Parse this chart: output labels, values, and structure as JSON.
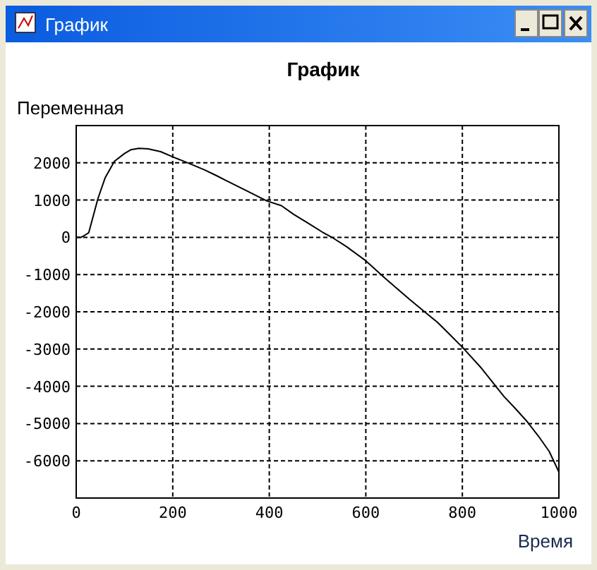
{
  "chart_data": {
    "type": "line",
    "title": "График",
    "xlabel": "Время",
    "ylabel": "Переменная",
    "annotations": [
      "График"
    ],
    "x": [
      0,
      10,
      17,
      26,
      45,
      60,
      79,
      100,
      113,
      130,
      149,
      175,
      200,
      233,
      266,
      290,
      314,
      350,
      395,
      425,
      450,
      484,
      510,
      533,
      560,
      600,
      640,
      690,
      720,
      749,
      770,
      800,
      840,
      886,
      910,
      935,
      960,
      980,
      1000
    ],
    "series": [
      {
        "color": "#000000",
        "values": [
          0,
          0,
          50,
          125,
          1040,
          1600,
          2040,
          2250,
          2350,
          2390,
          2375,
          2300,
          2160,
          1990,
          1810,
          1660,
          1500,
          1270,
          975,
          850,
          620,
          350,
          140,
          -25,
          -250,
          -630,
          -1100,
          -1660,
          -1980,
          -2290,
          -2560,
          -2950,
          -3520,
          -4270,
          -4600,
          -4960,
          -5380,
          -5750,
          -6300
        ]
      }
    ],
    "xlim": [
      0,
      1000
    ],
    "ylim": [
      -7000,
      3000
    ],
    "xticks": [
      0,
      200,
      400,
      600,
      800,
      1000
    ],
    "yticks": [
      -6000,
      -5000,
      -4000,
      -3000,
      -2000,
      -1000,
      0,
      1000,
      2000
    ],
    "grid": true,
    "line_style": "solid",
    "marker": "none"
  }
}
